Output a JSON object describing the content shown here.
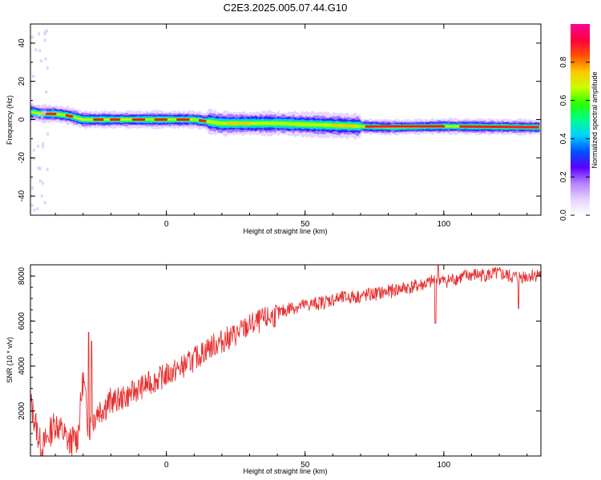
{
  "title": "C2E3.2025.005.07.44.G10",
  "chart_data": [
    {
      "type": "heatmap",
      "xlabel": "Height of straight line (km)",
      "ylabel": "Frequency (Hz)",
      "xlim": [
        -49,
        135
      ],
      "ylim": [
        -50,
        50
      ],
      "xticks": [
        0,
        50,
        100
      ],
      "yticks": [
        -40,
        -20,
        0,
        20,
        40
      ],
      "colorbar": {
        "label": "Normalized spectral amplitude",
        "range": [
          0,
          1
        ],
        "ticks": [
          0.0,
          0.2,
          0.4,
          0.6,
          0.8
        ],
        "colormap": [
          "#ffffff",
          "#e6d2ff",
          "#b482ff",
          "#5a00ff",
          "#0050ff",
          "#00d2ff",
          "#00ff8c",
          "#28ff00",
          "#c8ff00",
          "#ffc800",
          "#ff5000",
          "#ff0040",
          "#ff0096"
        ]
      },
      "ridge": {
        "description_points": [
          {
            "x": -49,
            "y": 4
          },
          {
            "x": -45,
            "y": 3
          },
          {
            "x": -40,
            "y": 3
          },
          {
            "x": -35,
            "y": 2
          },
          {
            "x": -30,
            "y": 0
          },
          {
            "x": -20,
            "y": 0
          },
          {
            "x": -10,
            "y": 0
          },
          {
            "x": 0,
            "y": 0
          },
          {
            "x": 10,
            "y": 0
          },
          {
            "x": 15,
            "y": -1
          },
          {
            "x": 20,
            "y": -2
          },
          {
            "x": 40,
            "y": -2
          },
          {
            "x": 60,
            "y": -3
          },
          {
            "x": 80,
            "y": -4
          },
          {
            "x": 100,
            "y": -3.5
          },
          {
            "x": 135,
            "y": -4
          }
        ]
      }
    },
    {
      "type": "line",
      "xlabel": "Height of straight line (km)",
      "ylabel": "SNR (10 * v/v)",
      "xlim": [
        -49,
        135
      ],
      "ylim": [
        0,
        8500
      ],
      "xticks": [
        0,
        50,
        100
      ],
      "yticks": [
        2000,
        4000,
        6000,
        8000
      ],
      "color": "#e83030",
      "series": [
        {
          "name": "",
          "x": [
            -49,
            -45,
            -40,
            -35,
            -32,
            -30,
            -28,
            -25,
            -20,
            -15,
            -10,
            -5,
            0,
            5,
            10,
            15,
            20,
            25,
            30,
            35,
            40,
            45,
            50,
            55,
            60,
            65,
            70,
            75,
            80,
            85,
            90,
            95,
            98,
            100,
            105,
            110,
            115,
            120,
            125,
            130,
            135
          ],
          "y": [
            2400,
            300,
            1500,
            600,
            800,
            3500,
            1200,
            2000,
            2400,
            2600,
            3000,
            3300,
            3600,
            3900,
            4300,
            4800,
            5100,
            5400,
            5800,
            6050,
            6300,
            6600,
            6700,
            6800,
            6950,
            7050,
            7100,
            7200,
            7300,
            7450,
            7550,
            7700,
            7900,
            7750,
            7900,
            8050,
            8050,
            8100,
            7950,
            8000,
            8100
          ]
        }
      ],
      "spikes": [
        {
          "x": -28,
          "y": 5500
        },
        {
          "x": -27,
          "y": 5100
        },
        {
          "x": 98,
          "y": 8500
        },
        {
          "x": 97,
          "y": 5900
        },
        {
          "x": 127,
          "y": 6550
        }
      ]
    }
  ]
}
